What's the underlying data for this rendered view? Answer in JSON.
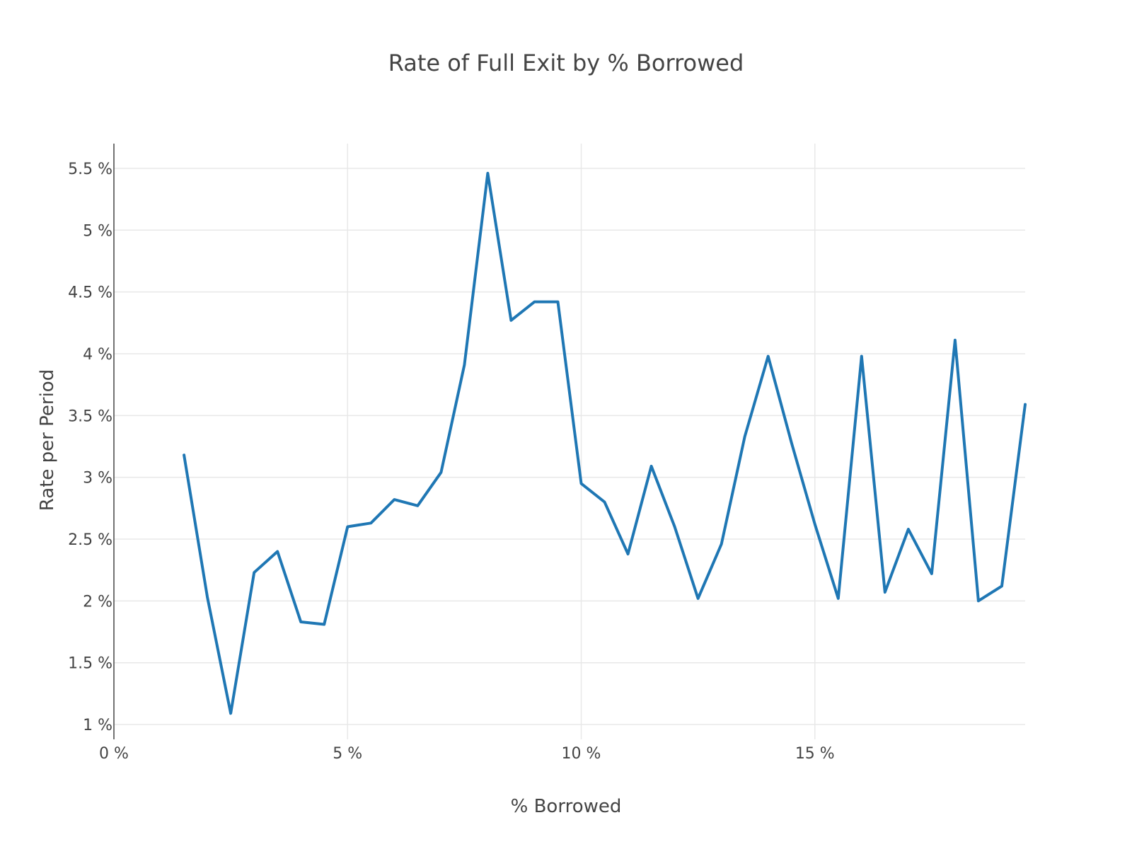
{
  "chart_data": {
    "type": "line",
    "title": "Rate of Full Exit by % Borrowed",
    "xlabel": "% Borrowed",
    "ylabel": "Rate per Period",
    "xlim": [
      0,
      19.5
    ],
    "ylim": [
      0.88,
      5.7
    ],
    "x_ticks": [
      {
        "value": 0,
        "label": "0 %"
      },
      {
        "value": 5,
        "label": "5 %"
      },
      {
        "value": 10,
        "label": "10 %"
      },
      {
        "value": 15,
        "label": "15 %"
      }
    ],
    "y_ticks": [
      {
        "value": 1,
        "label": "1 %"
      },
      {
        "value": 1.5,
        "label": "1.5 %"
      },
      {
        "value": 2,
        "label": "2 %"
      },
      {
        "value": 2.5,
        "label": "2.5 %"
      },
      {
        "value": 3,
        "label": "3 %"
      },
      {
        "value": 3.5,
        "label": "3.5 %"
      },
      {
        "value": 4,
        "label": "4 %"
      },
      {
        "value": 4.5,
        "label": "4.5 %"
      },
      {
        "value": 5,
        "label": "5 %"
      },
      {
        "value": 5.5,
        "label": "5.5 %"
      }
    ],
    "grid": true,
    "legend": false,
    "series": [
      {
        "color": "#1f77b4",
        "x": [
          1.5,
          2.0,
          2.5,
          3.0,
          3.5,
          4.0,
          4.5,
          5.0,
          5.5,
          6.0,
          6.5,
          7.0,
          7.5,
          8.0,
          8.5,
          9.0,
          9.5,
          10.0,
          10.5,
          11.0,
          11.5,
          12.0,
          12.5,
          13.0,
          13.5,
          14.0,
          14.5,
          15.0,
          15.5,
          16.0,
          16.5,
          17.0,
          17.5,
          18.0,
          18.5,
          19.0,
          19.5
        ],
        "y": [
          3.18,
          2.03,
          1.09,
          2.23,
          2.4,
          1.83,
          1.81,
          2.6,
          2.63,
          2.82,
          2.77,
          3.04,
          3.91,
          5.46,
          4.27,
          4.42,
          4.42,
          2.95,
          2.8,
          2.38,
          3.09,
          2.6,
          2.02,
          2.46,
          3.33,
          3.98,
          3.28,
          2.62,
          2.02,
          3.98,
          2.07,
          2.58,
          2.22,
          4.11,
          2.0,
          2.12,
          3.59
        ]
      }
    ]
  }
}
